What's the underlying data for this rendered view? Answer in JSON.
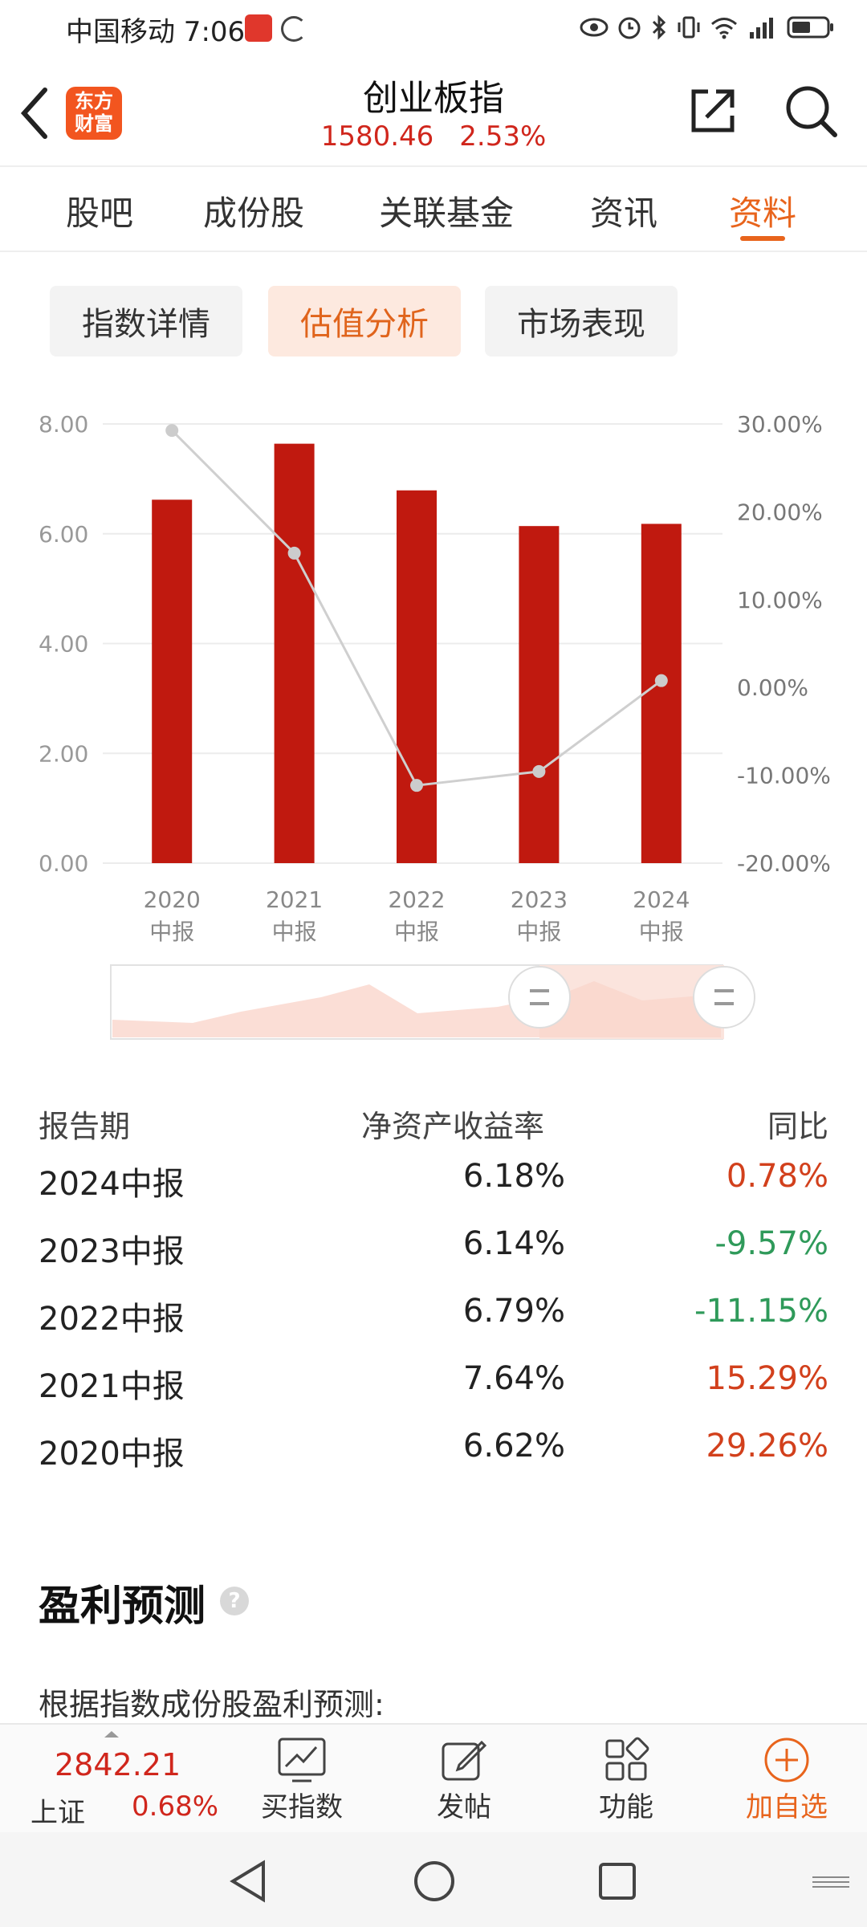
{
  "status_bar": {
    "carrier_time": "中国移动 7:06"
  },
  "header": {
    "title": "创业板指",
    "price": "1580.46",
    "change": "2.53%",
    "logo_line1": "东方",
    "logo_line2": "财富"
  },
  "tabs": [
    {
      "label": "股吧"
    },
    {
      "label": "成份股"
    },
    {
      "label": "关联基金"
    },
    {
      "label": "资讯"
    },
    {
      "label": "资料"
    }
  ],
  "subtabs": [
    {
      "label": "指数详情"
    },
    {
      "label": "估值分析"
    },
    {
      "label": "市场表现"
    }
  ],
  "chart_data": {
    "type": "bar",
    "categories": [
      "2020中报",
      "2021中报",
      "2022中报",
      "2023中报",
      "2024中报"
    ],
    "category_lines": [
      [
        "2020",
        "中报"
      ],
      [
        "2021",
        "中报"
      ],
      [
        "2022",
        "中报"
      ],
      [
        "2023",
        "中报"
      ],
      [
        "2024",
        "中报"
      ]
    ],
    "series": [
      {
        "name": "净资产收益率",
        "type": "bar",
        "values": [
          6.62,
          7.64,
          6.79,
          6.14,
          6.18
        ],
        "color": "#c0190f"
      },
      {
        "name": "同比",
        "type": "line",
        "axis": "right",
        "values": [
          29.26,
          15.29,
          -11.15,
          -9.57,
          0.78
        ],
        "color": "#cfcfcf"
      }
    ],
    "ylim_left": [
      0,
      8
    ],
    "ylim_right": [
      -20,
      30
    ],
    "left_ticks": [
      "0.00",
      "2.00",
      "4.00",
      "6.00",
      "8.00"
    ],
    "right_ticks": [
      "-20.00%",
      "-10.00%",
      "0.00%",
      "10.00%",
      "20.00%",
      "30.00%"
    ],
    "grid": true
  },
  "table": {
    "headers": [
      "报告期",
      "净资产收益率",
      "同比"
    ],
    "rows": [
      {
        "period": "2024中报",
        "roe": "6.18%",
        "yoy": "0.78%",
        "dir": "up"
      },
      {
        "period": "2023中报",
        "roe": "6.14%",
        "yoy": "-9.57%",
        "dir": "down"
      },
      {
        "period": "2022中报",
        "roe": "6.79%",
        "yoy": "-11.15%",
        "dir": "down"
      },
      {
        "period": "2021中报",
        "roe": "7.64%",
        "yoy": "15.29%",
        "dir": "up"
      },
      {
        "period": "2020中报",
        "roe": "6.62%",
        "yoy": "29.26%",
        "dir": "up"
      }
    ]
  },
  "section": {
    "title": "盈利预测",
    "help": "?",
    "desc": "根据指数成份股盈利预测:"
  },
  "bottom_bar": {
    "index_value": "2842.21",
    "index_name": "上证",
    "index_change": "0.68%",
    "buy_label": "买指数",
    "post_label": "发帖",
    "func_label": "功能",
    "add_label": "加自选"
  },
  "colors": {
    "accent": "#e8641c",
    "up": "#d2401c",
    "down": "#2f9a5a",
    "bar": "#c0190f"
  }
}
